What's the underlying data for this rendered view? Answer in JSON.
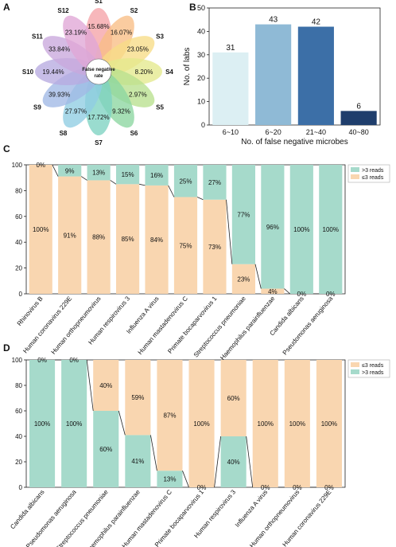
{
  "panels": {
    "A": "A",
    "B": "B",
    "C": "C",
    "D": "D"
  },
  "colors": {
    "orange": "#F9D6B0",
    "green": "#A6DACB",
    "bar_colors_B": [
      "#DCEFF3",
      "#8FBAD6",
      "#3C6FA7",
      "#1F3E6C"
    ],
    "petal_colors_A": [
      "#F5A3A8",
      "#F9BE85",
      "#F7DC86",
      "#E4E98D",
      "#B8E08E",
      "#8CD6A0",
      "#7DD2C2",
      "#8FCDE3",
      "#A0B9E6",
      "#B7AAE0",
      "#C9A8DC",
      "#E0A7D6"
    ]
  },
  "chart_data": [
    {
      "id": "A",
      "type": "pie",
      "center_label": "False negative rate",
      "slices": [
        {
          "label": "S1",
          "value": "15.68%"
        },
        {
          "label": "S2",
          "value": "16.07%"
        },
        {
          "label": "S3",
          "value": "23.05%"
        },
        {
          "label": "S4",
          "value": "8.20%"
        },
        {
          "label": "S5",
          "value": "2.97%"
        },
        {
          "label": "S6",
          "value": "9.32%"
        },
        {
          "label": "S7",
          "value": "17.72%"
        },
        {
          "label": "S8",
          "value": "27.97%"
        },
        {
          "label": "S9",
          "value": "39.93%"
        },
        {
          "label": "S10",
          "value": "19.44%"
        },
        {
          "label": "S11",
          "value": "33.84%"
        },
        {
          "label": "S12",
          "value": "23.19%"
        }
      ]
    },
    {
      "id": "B",
      "type": "bar",
      "categories": [
        "6~10",
        "6~20",
        "21~40",
        "40~80"
      ],
      "values": [
        31,
        43,
        42,
        6
      ],
      "xlabel": "No. of  false negative microbes",
      "ylabel": "No. of labs",
      "ylim": [
        0,
        50
      ],
      "yticks": [
        0,
        10,
        20,
        30,
        40,
        50
      ]
    },
    {
      "id": "C",
      "type": "bar",
      "stacked": true,
      "categories": [
        "Rhinovirus B",
        "Human coronavirus 229E",
        "Human orthopneumovirus",
        "Human respirovirus 3",
        "Influenza A virus",
        "Human mastadenovirus C",
        "Primate bocaparvovirus 1",
        "Streptococcus pneumoniae",
        "Haemophilus parainfluenzae",
        "Candida albicans",
        "Pseudomonas aeruginosa"
      ],
      "series": [
        {
          "name": "≤3 reads",
          "values": [
            100,
            91,
            88,
            85,
            84,
            75,
            73,
            23,
            4,
            0,
            0
          ]
        },
        {
          "name": ">3 reads",
          "values": [
            0,
            9,
            13,
            15,
            16,
            25,
            27,
            77,
            96,
            100,
            100
          ]
        }
      ],
      "labels_low": [
        "100%",
        "91%",
        "88%",
        "85%",
        "84%",
        "75%",
        "73%",
        "23%",
        "4%",
        "0%",
        "0%"
      ],
      "labels_high": [
        "0%",
        "9%",
        "13%",
        "15%",
        "16%",
        "25%",
        "27%",
        "77%",
        "96%",
        "100%",
        "100%"
      ],
      "ylim": [
        0,
        100
      ],
      "yticks": [
        0,
        20,
        40,
        60,
        80,
        100
      ],
      "legend": [
        ">3 reads",
        "≤3 reads"
      ],
      "legend_position": "top-right"
    },
    {
      "id": "D",
      "type": "bar",
      "stacked": true,
      "categories": [
        "Candida albicans",
        "Pseudomonas aeruginosa",
        "Streptococcus pneumoniae",
        "Haemophilus parainfluenzae",
        "Human mastadenovirus C",
        "Primate bocaparvovirus 1",
        "Human respirovirus 3",
        "Influenza A virus",
        "Human orthopneumovirus",
        "Human coronavirus 229E"
      ],
      "series": [
        {
          "name": ">3 reads",
          "values": [
            100,
            100,
            60,
            41,
            13,
            0,
            40,
            0,
            0,
            0
          ]
        },
        {
          "name": "≤3 reads",
          "values": [
            0,
            0,
            40,
            59,
            87,
            100,
            60,
            100,
            100,
            100
          ]
        }
      ],
      "labels_low": [
        "100%",
        "100%",
        "60%",
        "41%",
        "13%",
        "0%",
        "40%",
        "0%",
        "0%",
        "0%"
      ],
      "labels_high": [
        "0%",
        "0%",
        "40%",
        "59%",
        "87%",
        "100%",
        "60%",
        "100%",
        "100%",
        "100%"
      ],
      "ylim": [
        0,
        100
      ],
      "yticks": [
        0,
        20,
        40,
        60,
        80,
        100
      ],
      "legend": [
        "≤3 reads",
        ">3 reads"
      ],
      "legend_position": "top-right"
    }
  ]
}
